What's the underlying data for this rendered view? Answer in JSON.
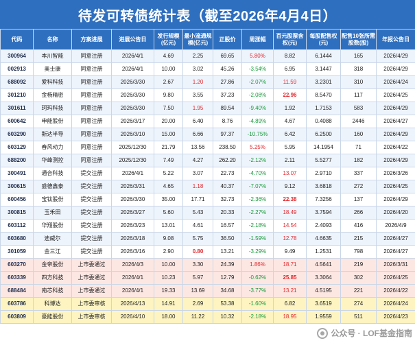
{
  "title": "待发可转债统计表（截至2026年4月4日）",
  "columns": [
    "代码",
    "名称",
    "方案进展",
    "进展公告日",
    "发行规模(亿元)",
    "最小流通规模(亿元)",
    "正股价",
    "周涨幅",
    "百元股票含权(元)",
    "每股配售权(元)",
    "配售10张所需股数(股)",
    "年报公告日"
  ],
  "rows": [
    {
      "code": "300964",
      "name": "本川智能",
      "status": "同意注册",
      "date": "2026/4/1",
      "size": "4.69",
      "min": "2.25",
      "price": "69.65",
      "chg": "5.80%",
      "per100": "8.82",
      "allot": "6.1444",
      "shares": "165",
      "report": "2026/4/29",
      "style": "blue",
      "min_red": false,
      "chg_red": true,
      "per100_red": false
    },
    {
      "code": "002913",
      "name": "奥士康",
      "status": "同意注册",
      "date": "2026/4/1",
      "size": "10.00",
      "min": "3.02",
      "price": "45.26",
      "chg": "-3.54%",
      "per100": "6.95",
      "allot": "3.1447",
      "shares": "318",
      "report": "2026/4/29",
      "style": "white",
      "min_red": false,
      "chg_red": false,
      "per100_red": false
    },
    {
      "code": "688092",
      "name": "爱科科技",
      "status": "同意注册",
      "date": "2026/3/30",
      "size": "2.67",
      "min": "1.20",
      "price": "27.86",
      "chg": "-2.07%",
      "per100": "11.59",
      "allot": "3.2301",
      "shares": "310",
      "report": "2026/4/24",
      "style": "blue",
      "min_red": true,
      "chg_red": false,
      "per100_red": true
    },
    {
      "code": "301210",
      "name": "金杨精密",
      "status": "同意注册",
      "date": "2026/3/30",
      "size": "9.80",
      "min": "3.55",
      "price": "37.23",
      "chg": "-2.08%",
      "per100": "22.96",
      "allot": "8.5470",
      "shares": "117",
      "report": "2026/4/25",
      "style": "white",
      "min_red": false,
      "chg_red": false,
      "per100_red": true,
      "per100_bold": true
    },
    {
      "code": "301611",
      "name": "珂玛科技",
      "status": "同意注册",
      "date": "2026/3/30",
      "size": "7.50",
      "min": "1.95",
      "price": "89.54",
      "chg": "-9.40%",
      "per100": "1.92",
      "allot": "1.7153",
      "shares": "583",
      "report": "2026/4/29",
      "style": "blue",
      "min_red": true,
      "chg_red": false,
      "per100_red": false
    },
    {
      "code": "600642",
      "name": "申能股份",
      "status": "同意注册",
      "date": "2026/3/17",
      "size": "20.00",
      "min": "6.40",
      "price": "8.76",
      "chg": "-4.89%",
      "per100": "4.67",
      "allot": "0.4088",
      "shares": "2446",
      "report": "2026/4/27",
      "style": "white",
      "min_red": false,
      "chg_red": false,
      "per100_red": false
    },
    {
      "code": "603290",
      "name": "斯达半导",
      "status": "同意注册",
      "date": "2026/3/10",
      "size": "15.00",
      "min": "6.66",
      "price": "97.37",
      "chg": "-10.75%",
      "per100": "6.42",
      "allot": "6.2500",
      "shares": "160",
      "report": "2026/4/29",
      "style": "blue",
      "min_red": false,
      "chg_red": false,
      "per100_red": false
    },
    {
      "code": "603129",
      "name": "春风动力",
      "status": "同意注册",
      "date": "2025/12/30",
      "size": "21.79",
      "min": "13.56",
      "price": "238.50",
      "chg": "5.25%",
      "per100": "5.95",
      "allot": "14.1954",
      "shares": "71",
      "report": "2026/4/22",
      "style": "white",
      "min_red": false,
      "chg_red": true,
      "per100_red": false
    },
    {
      "code": "688200",
      "name": "华峰测控",
      "status": "同意注册",
      "date": "2025/12/30",
      "size": "7.49",
      "min": "4.27",
      "price": "262.20",
      "chg": "-2.12%",
      "per100": "2.11",
      "allot": "5.5277",
      "shares": "182",
      "report": "2026/4/29",
      "style": "blue",
      "min_red": false,
      "chg_red": false,
      "per100_red": false
    },
    {
      "code": "300491",
      "name": "通合科技",
      "status": "提交注册",
      "date": "2026/4/1",
      "size": "5.22",
      "min": "3.07",
      "price": "22.73",
      "chg": "-4.70%",
      "per100": "13.07",
      "allot": "2.9710",
      "shares": "337",
      "report": "2026/3/26",
      "style": "white",
      "min_red": false,
      "chg_red": false,
      "per100_red": true
    },
    {
      "code": "300615",
      "name": "盛德鑫泰",
      "status": "提交注册",
      "date": "2026/3/31",
      "size": "4.65",
      "min": "1.18",
      "price": "40.37",
      "chg": "-7.07%",
      "per100": "9.12",
      "allot": "3.6818",
      "shares": "272",
      "report": "2026/4/25",
      "style": "blue",
      "min_red": true,
      "chg_red": false,
      "per100_red": false
    },
    {
      "code": "600456",
      "name": "宝钛股份",
      "status": "提交注册",
      "date": "2026/3/30",
      "size": "35.00",
      "min": "17.71",
      "price": "32.73",
      "chg": "-2.36%",
      "per100": "22.38",
      "allot": "7.3256",
      "shares": "137",
      "report": "2026/4/29",
      "style": "white",
      "min_red": false,
      "chg_red": false,
      "per100_red": true,
      "per100_bold": true
    },
    {
      "code": "300815",
      "name": "玉禾田",
      "status": "提交注册",
      "date": "2026/3/27",
      "size": "5.60",
      "min": "5.43",
      "price": "20.33",
      "chg": "-2.27%",
      "per100": "18.49",
      "allot": "3.7594",
      "shares": "266",
      "report": "2026/4/20",
      "style": "blue",
      "min_red": false,
      "chg_red": false,
      "per100_red": true
    },
    {
      "code": "603112",
      "name": "华翔股份",
      "status": "提交注册",
      "date": "2026/3/23",
      "size": "13.01",
      "min": "4.61",
      "price": "16.57",
      "chg": "-2.18%",
      "per100": "14.54",
      "allot": "2.4093",
      "shares": "416",
      "report": "2026/4/9",
      "style": "white",
      "min_red": false,
      "chg_red": false,
      "per100_red": true
    },
    {
      "code": "603680",
      "name": "迪威尔",
      "status": "提交注册",
      "date": "2026/3/18",
      "size": "9.08",
      "min": "5.75",
      "price": "36.50",
      "chg": "-1.59%",
      "per100": "12.78",
      "allot": "4.6635",
      "shares": "215",
      "report": "2026/4/27",
      "style": "blue",
      "min_red": false,
      "chg_red": false,
      "per100_red": true
    },
    {
      "code": "301059",
      "name": "金三江",
      "status": "提交注册",
      "date": "2026/3/16",
      "size": "2.90",
      "min": "0.80",
      "price": "13.21",
      "chg": "-3.29%",
      "per100": "9.49",
      "allot": "1.2531",
      "shares": "798",
      "report": "2026/4/27",
      "style": "white",
      "min_red": true,
      "min_bold": true,
      "chg_red": false,
      "per100_red": false
    },
    {
      "code": "603270",
      "name": "金帝股份",
      "status": "上市委通过",
      "date": "2026/4/3",
      "size": "10.00",
      "min": "3.30",
      "price": "24.39",
      "chg": "1.86%",
      "per100": "18.71",
      "allot": "4.5641",
      "shares": "219",
      "report": "2026/3/31",
      "style": "pink",
      "min_red": false,
      "chg_red": true,
      "per100_red": true
    },
    {
      "code": "603339",
      "name": "四方科技",
      "status": "上市委通过",
      "date": "2026/4/1",
      "size": "10.23",
      "min": "5.97",
      "price": "12.79",
      "chg": "-0.62%",
      "per100": "25.85",
      "allot": "3.3064",
      "shares": "302",
      "report": "2026/4/25",
      "style": "pink",
      "min_red": false,
      "chg_red": false,
      "per100_red": true,
      "per100_bold": true
    },
    {
      "code": "688484",
      "name": "南芯科技",
      "status": "上市委通过",
      "date": "2026/4/1",
      "size": "19.33",
      "min": "13.69",
      "price": "34.68",
      "chg": "-3.77%",
      "per100": "13.21",
      "allot": "4.5195",
      "shares": "221",
      "report": "2026/4/22",
      "style": "pink",
      "min_red": false,
      "chg_red": false,
      "per100_red": true
    },
    {
      "code": "603786",
      "name": "科博达",
      "status": "上市委审核",
      "date": "2026/4/13",
      "size": "14.91",
      "min": "2.69",
      "price": "53.38",
      "chg": "-1.60%",
      "per100": "6.82",
      "allot": "3.6519",
      "shares": "274",
      "report": "2026/4/24",
      "style": "yellow",
      "min_red": false,
      "chg_red": false,
      "per100_red": false
    },
    {
      "code": "603809",
      "name": "豪能股份",
      "status": "上市委审核",
      "date": "2026/4/10",
      "size": "18.00",
      "min": "11.22",
      "price": "10.32",
      "chg": "-2.18%",
      "per100": "18.95",
      "allot": "1.9559",
      "shares": "511",
      "report": "2026/4/23",
      "style": "yellow",
      "min_red": false,
      "chg_red": false,
      "per100_red": true
    }
  ],
  "watermark": {
    "text": "公众号 · LOF基金指南",
    "icon": "wechat-official-account-icon"
  }
}
